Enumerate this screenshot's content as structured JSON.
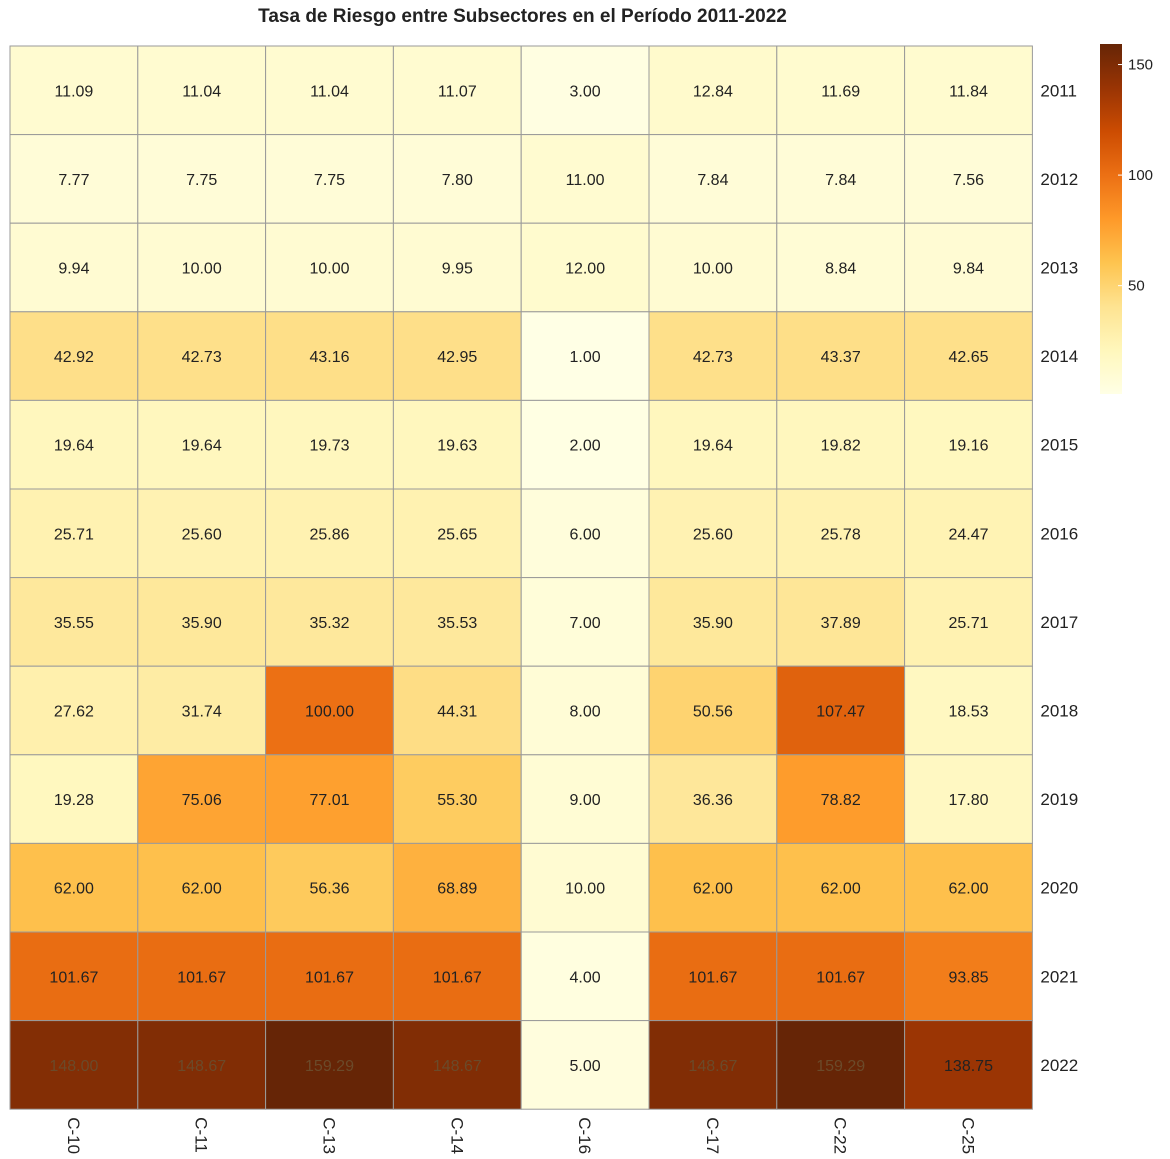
{
  "chart_data": {
    "type": "heatmap",
    "title": "Tasa de Riesgo entre Subsectores en el Período 2011-2022",
    "columns": [
      "C-10",
      "C-11",
      "C-13",
      "C-14",
      "C-16",
      "C-17",
      "C-22",
      "C-25"
    ],
    "rows": [
      "2011",
      "2012",
      "2013",
      "2014",
      "2015",
      "2016",
      "2017",
      "2018",
      "2019",
      "2020",
      "2021",
      "2022"
    ],
    "values": [
      [
        "11.09",
        "11.04",
        "11.04",
        "11.07",
        "3.00",
        "12.84",
        "11.69",
        "11.84"
      ],
      [
        "7.77",
        "7.75",
        "7.75",
        "7.80",
        "11.00",
        "7.84",
        "7.84",
        "7.56"
      ],
      [
        "9.94",
        "10.00",
        "10.00",
        "9.95",
        "12.00",
        "10.00",
        "8.84",
        "9.84"
      ],
      [
        "42.92",
        "42.73",
        "43.16",
        "42.95",
        "1.00",
        "42.73",
        "43.37",
        "42.65"
      ],
      [
        "19.64",
        "19.64",
        "19.73",
        "19.63",
        "2.00",
        "19.64",
        "19.82",
        "19.16"
      ],
      [
        "25.71",
        "25.60",
        "25.86",
        "25.65",
        "6.00",
        "25.60",
        "25.78",
        "24.47"
      ],
      [
        "35.55",
        "35.90",
        "35.32",
        "35.53",
        "7.00",
        "35.90",
        "37.89",
        "25.71"
      ],
      [
        "27.62",
        "31.74",
        "100.00",
        "44.31",
        "8.00",
        "50.56",
        "107.47",
        "18.53"
      ],
      [
        "19.28",
        "75.06",
        "77.01",
        "55.30",
        "9.00",
        "36.36",
        "78.82",
        "17.80"
      ],
      [
        "62.00",
        "62.00",
        "56.36",
        "68.89",
        "10.00",
        "62.00",
        "62.00",
        "62.00"
      ],
      [
        "101.67",
        "101.67",
        "101.67",
        "101.67",
        "4.00",
        "101.67",
        "101.67",
        "93.85"
      ],
      [
        "148.00",
        "148.67",
        "159.29",
        "148.67",
        "5.00",
        "148.67",
        "159.29",
        "138.75"
      ]
    ],
    "color_scale": {
      "min": 1,
      "max": 159.29,
      "ticks": [
        "50",
        "100",
        "150"
      ],
      "colors": [
        "#ffffe5",
        "#fff7bc",
        "#fee391",
        "#fec44f",
        "#fe9929",
        "#ec7014",
        "#cc4c02",
        "#993404",
        "#662506"
      ]
    },
    "legend_position": "top-right",
    "cell_border_color": "#9a9a9a"
  }
}
